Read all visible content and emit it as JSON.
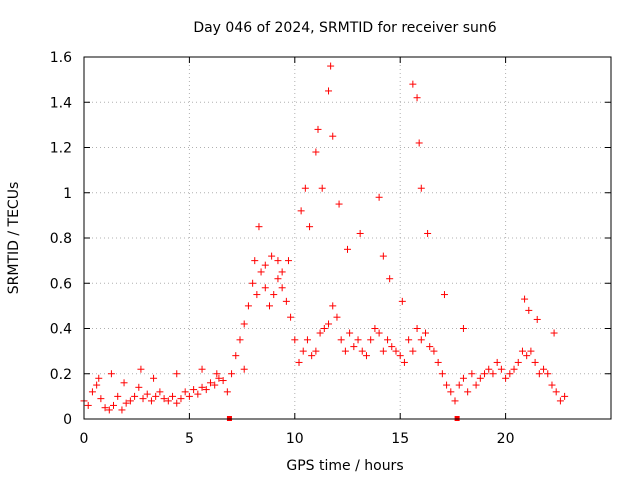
{
  "chart_data": {
    "type": "scatter",
    "title": "Day 046 of 2024, SRMTID for receiver sun6",
    "xlabel": "GPS time / hours",
    "ylabel": "SRMTID / TECUs",
    "xlim": [
      0,
      25
    ],
    "ylim": [
      0,
      1.6
    ],
    "xticks": [
      0,
      5,
      10,
      15,
      20
    ],
    "xtick_labels": [
      "0",
      "5",
      "10",
      "15",
      "20"
    ],
    "yticks": [
      0,
      0.2,
      0.4,
      0.6,
      0.8,
      1.0,
      1.2,
      1.4,
      1.6
    ],
    "ytick_labels": [
      "0",
      "0.2",
      "0.4",
      "0.6",
      "0.8",
      "1",
      "1.2",
      "1.4",
      "1.6"
    ],
    "grid": true,
    "marker": "+",
    "series_color": "#ff0000",
    "series": [
      {
        "name": "SRMTID",
        "x": [
          0.0,
          0.2,
          0.4,
          0.6,
          0.8,
          1.0,
          1.2,
          1.4,
          1.6,
          1.8,
          2.0,
          2.2,
          2.4,
          2.6,
          2.8,
          3.0,
          3.2,
          3.4,
          3.6,
          3.8,
          4.0,
          4.2,
          4.4,
          4.6,
          4.8,
          5.0,
          5.2,
          5.4,
          5.6,
          5.8,
          6.0,
          6.2,
          6.4,
          6.6,
          6.8,
          7.0,
          7.2,
          7.4,
          7.6,
          7.8,
          8.0,
          8.2,
          8.4,
          8.6,
          8.8,
          9.0,
          9.2,
          9.4,
          9.6,
          9.8,
          10.0,
          10.2,
          10.4,
          10.6,
          10.8,
          11.0,
          11.2,
          11.4,
          11.6,
          11.8,
          12.0,
          12.2,
          12.4,
          12.6,
          12.8,
          13.0,
          13.2,
          13.4,
          13.6,
          13.8,
          14.0,
          14.2,
          14.4,
          14.6,
          14.8,
          15.0,
          15.2,
          15.4,
          15.6,
          15.8,
          16.0,
          16.2,
          16.4,
          16.6,
          16.8,
          17.0,
          17.2,
          17.4,
          17.6,
          17.8,
          18.0,
          18.2,
          18.4,
          18.6,
          18.8,
          19.0,
          19.2,
          19.4,
          19.6,
          19.8,
          20.0,
          20.2,
          20.4,
          20.6,
          20.8,
          21.0,
          21.2,
          21.4,
          21.6,
          21.8,
          22.0,
          22.2,
          22.4,
          22.6,
          22.8,
          0.7,
          1.3,
          1.9,
          2.7,
          3.3,
          4.4,
          5.6,
          6.3,
          7.6,
          8.1,
          8.3,
          8.6,
          8.9,
          9.2,
          9.4,
          9.7,
          10.3,
          10.5,
          10.7,
          11.0,
          11.1,
          11.3,
          11.6,
          11.7,
          11.8,
          12.1,
          12.5,
          13.1,
          14.0,
          14.2,
          14.5,
          15.1,
          15.6,
          15.8,
          15.9,
          16.0,
          16.3,
          17.1,
          18.0,
          20.9,
          21.1,
          21.5,
          22.3
        ],
        "y": [
          0.08,
          0.06,
          0.12,
          0.15,
          0.09,
          0.05,
          0.04,
          0.06,
          0.1,
          0.04,
          0.07,
          0.08,
          0.1,
          0.14,
          0.09,
          0.11,
          0.08,
          0.1,
          0.12,
          0.09,
          0.08,
          0.1,
          0.07,
          0.09,
          0.12,
          0.1,
          0.13,
          0.11,
          0.14,
          0.13,
          0.16,
          0.15,
          0.18,
          0.17,
          0.12,
          0.2,
          0.28,
          0.35,
          0.42,
          0.5,
          0.6,
          0.55,
          0.65,
          0.58,
          0.5,
          0.55,
          0.62,
          0.58,
          0.52,
          0.45,
          0.35,
          0.25,
          0.3,
          0.35,
          0.28,
          0.3,
          0.38,
          0.4,
          0.42,
          0.5,
          0.45,
          0.35,
          0.3,
          0.38,
          0.32,
          0.35,
          0.3,
          0.28,
          0.35,
          0.4,
          0.38,
          0.3,
          0.35,
          0.32,
          0.3,
          0.28,
          0.25,
          0.35,
          0.3,
          0.4,
          0.35,
          0.38,
          0.32,
          0.3,
          0.25,
          0.2,
          0.15,
          0.12,
          0.08,
          0.15,
          0.18,
          0.12,
          0.2,
          0.15,
          0.18,
          0.2,
          0.22,
          0.2,
          0.25,
          0.22,
          0.18,
          0.2,
          0.22,
          0.25,
          0.3,
          0.28,
          0.3,
          0.25,
          0.2,
          0.22,
          0.2,
          0.15,
          0.12,
          0.08,
          0.1,
          0.18,
          0.2,
          0.16,
          0.22,
          0.18,
          0.2,
          0.22,
          0.2,
          0.22,
          0.7,
          0.85,
          0.68,
          0.72,
          0.7,
          0.65,
          0.7,
          0.92,
          1.02,
          0.85,
          1.18,
          1.28,
          1.02,
          1.45,
          1.56,
          1.25,
          0.95,
          0.75,
          0.82,
          0.98,
          0.72,
          0.62,
          0.52,
          1.48,
          1.42,
          1.22,
          1.02,
          0.82,
          0.55,
          0.4,
          0.53,
          0.48,
          0.44,
          0.38
        ]
      }
    ],
    "zero_markers_x": [
      6.9,
      17.7
    ]
  }
}
